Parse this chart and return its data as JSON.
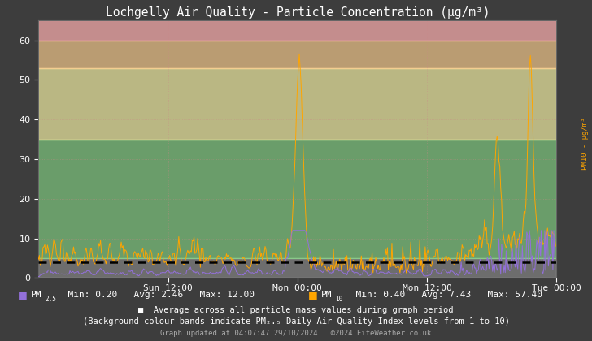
{
  "title": "Lochgelly Air Quality - Particle Concentration (μg/m³)",
  "bg_color": "#3d3d3d",
  "band_params": [
    [
      0,
      5,
      "#ffffff",
      0.25
    ],
    [
      5,
      35,
      "#90ee90",
      0.55
    ],
    [
      35,
      53,
      "#fffaaa",
      0.65
    ],
    [
      53,
      60,
      "#ffd090",
      0.65
    ],
    [
      60,
      65,
      "#ffb0b0",
      0.7
    ]
  ],
  "ylim": [
    0,
    65
  ],
  "yticks": [
    0,
    10,
    20,
    30,
    40,
    50,
    60
  ],
  "grid_color": "#cc8888",
  "grid_alpha": 0.5,
  "dashed_line_y": 4.0,
  "pm25_color": "#9370DB",
  "pm10_color": "#FFA500",
  "pm25_min": 0.2,
  "pm25_avg": 2.46,
  "pm25_max": 12.0,
  "pm10_min": 0.4,
  "pm10_avg": 7.43,
  "pm10_max": 57.4,
  "avg_value": 4.0,
  "xticklabels": [
    "Sun 12:00",
    "Mon 00:00",
    "Mon 12:00",
    "Tue 00:00"
  ],
  "xtick_positions": [
    144,
    288,
    432,
    576
  ],
  "n_points": 576,
  "footer_text1": "Average across all particle mass values during graph period",
  "footer_text2a": "(Background colour bands indicate PM",
  "footer_text2b": " Daily Air Quality Index levels from 1 to 10)",
  "footer_text3": "Graph updated at 04:07:47 29/10/2024 | ©2024 FifeWeather.co.uk",
  "right_label": "PM10 - μg/m³"
}
